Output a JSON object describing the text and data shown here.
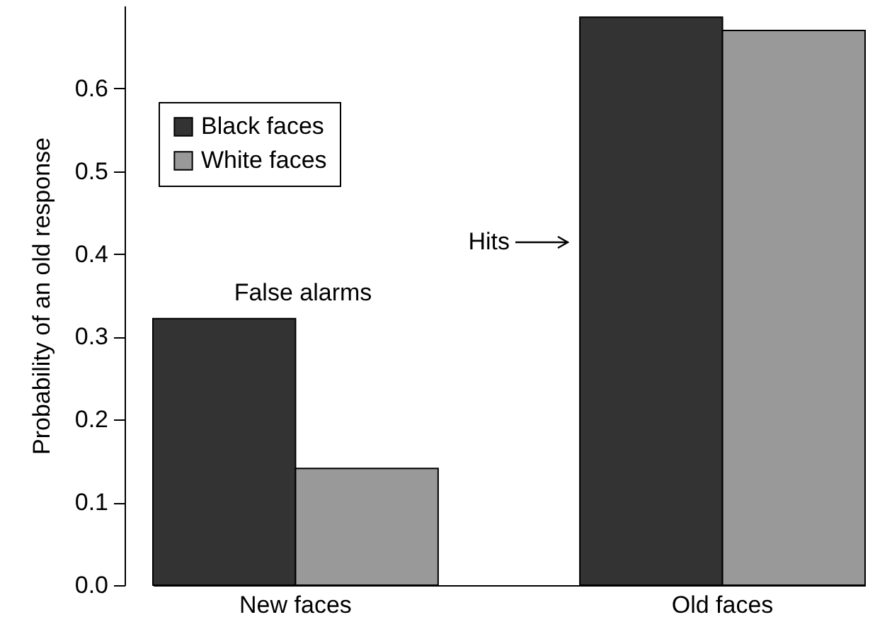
{
  "chart_data": {
    "type": "bar",
    "ylabel": "Probability of an old response",
    "categories": [
      "New faces",
      "Old faces"
    ],
    "series": [
      {
        "name": "Black faces",
        "color": "#333333",
        "values": [
          0.322,
          0.686
        ]
      },
      {
        "name": "White faces",
        "color": "#999999",
        "values": [
          0.141,
          0.67
        ]
      }
    ],
    "ylim": [
      0,
      0.7
    ],
    "yticks": [
      {
        "value": 0,
        "label": "0.0"
      },
      0.1,
      0.2,
      0.3,
      0.4,
      0.5,
      0.6
    ],
    "annotations": [
      "False alarms",
      "Hits"
    ],
    "legend": "top left",
    "grid": false
  }
}
